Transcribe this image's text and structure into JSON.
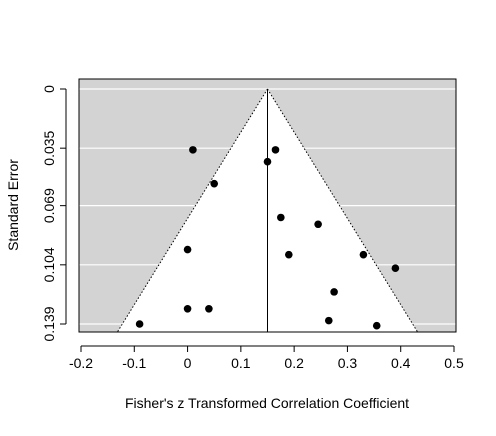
{
  "chart_data": {
    "type": "scatter",
    "subtype": "funnel",
    "title": "",
    "xlabel": "Fisher's z Transformed Correlation Coefficient",
    "ylabel": "Standard Error",
    "xlim": [
      -0.2,
      0.5
    ],
    "ylim": [
      0.139,
      0
    ],
    "y_reversed": true,
    "x_ticks": [
      "-0.2",
      "-0.1",
      "0",
      "0.1",
      "0.2",
      "0.3",
      "0.4",
      "0.5"
    ],
    "x_tick_values": [
      -0.2,
      -0.1,
      0,
      0.1,
      0.2,
      0.3,
      0.4,
      0.5
    ],
    "y_ticks": [
      "0",
      "0.035",
      "0.069",
      "0.104",
      "0.139"
    ],
    "y_tick_values": [
      0,
      0.035,
      0.069,
      0.104,
      0.139
    ],
    "summary_estimate": 0.15,
    "funnel_multiplier": 1.96,
    "grid": true,
    "colors": {
      "background": "#d3d3d3",
      "funnel": "#ffffff",
      "points": "#000000",
      "gridlines": "#ffffff"
    },
    "points": [
      {
        "x": 0.01,
        "y": 0.036
      },
      {
        "x": 0.165,
        "y": 0.036
      },
      {
        "x": 0.15,
        "y": 0.043
      },
      {
        "x": 0.05,
        "y": 0.056
      },
      {
        "x": 0.175,
        "y": 0.076
      },
      {
        "x": 0.245,
        "y": 0.08
      },
      {
        "x": 0.0,
        "y": 0.095
      },
      {
        "x": 0.19,
        "y": 0.098
      },
      {
        "x": 0.33,
        "y": 0.098
      },
      {
        "x": 0.39,
        "y": 0.106
      },
      {
        "x": 0.275,
        "y": 0.12
      },
      {
        "x": 0.0,
        "y": 0.13
      },
      {
        "x": 0.04,
        "y": 0.13
      },
      {
        "x": 0.265,
        "y": 0.137
      },
      {
        "x": -0.09,
        "y": 0.139
      },
      {
        "x": 0.355,
        "y": 0.14
      }
    ]
  }
}
